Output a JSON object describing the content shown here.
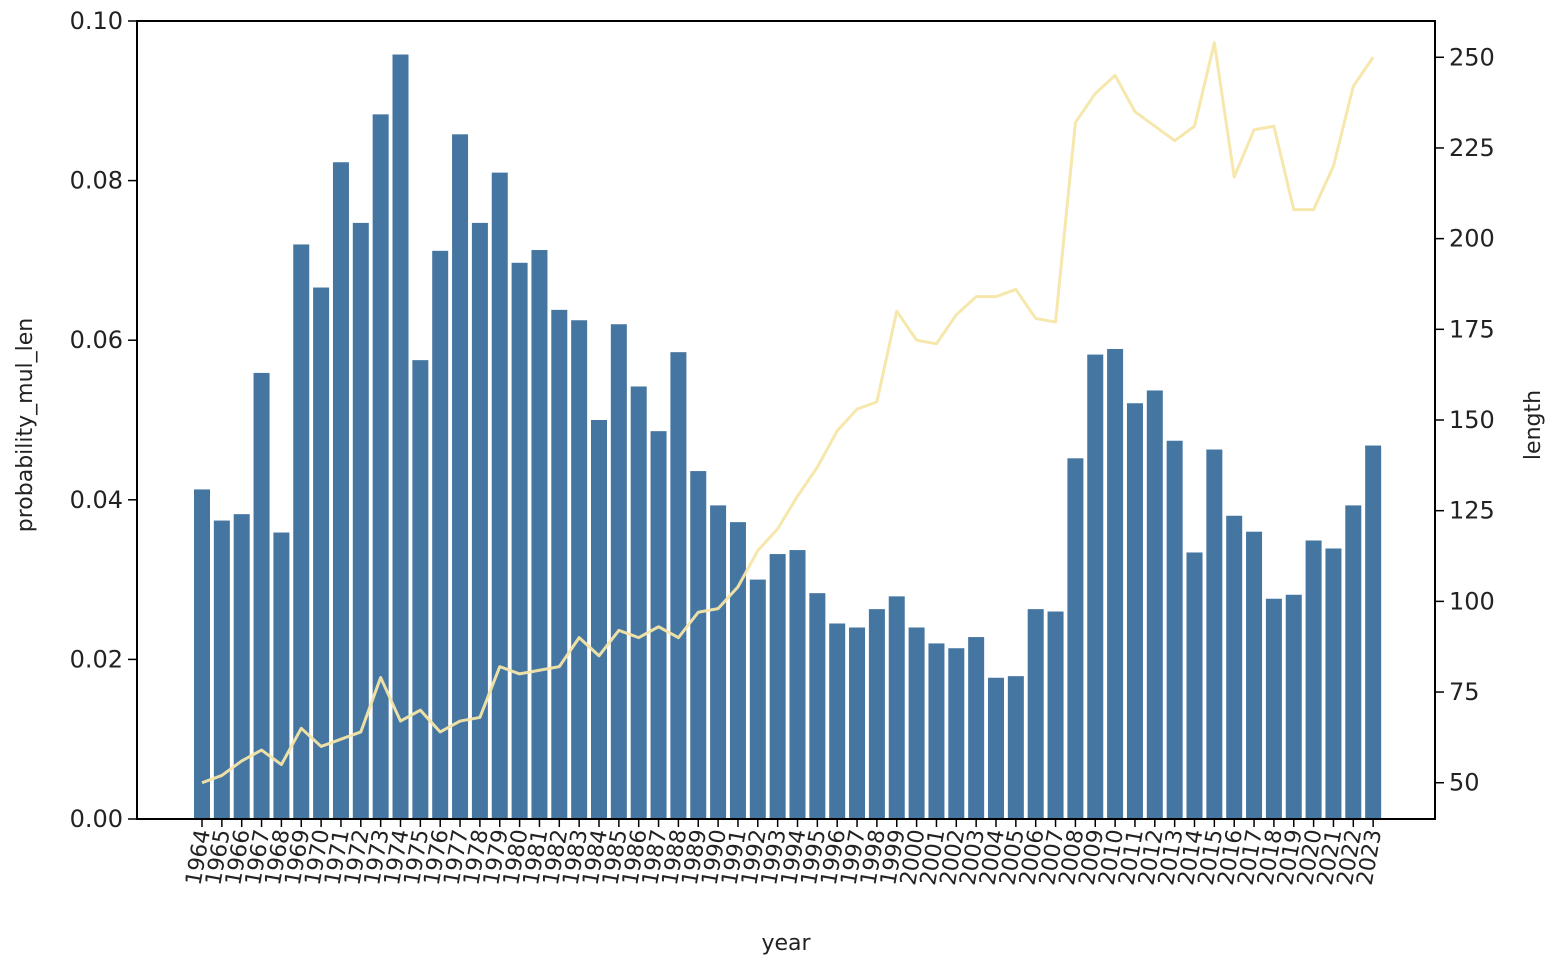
{
  "chart_data": {
    "type": "bar",
    "xlabel": "year",
    "ylabel": "probability_mul_len",
    "y2label": "length",
    "ylim": [
      0,
      0.1
    ],
    "y2lim": [
      40,
      260
    ],
    "yticks": [
      "0.00",
      "0.02",
      "0.04",
      "0.06",
      "0.08",
      "0.10"
    ],
    "y2ticks": [
      "50",
      "75",
      "100",
      "125",
      "150",
      "175",
      "200",
      "225",
      "250"
    ],
    "grid": false,
    "categories": [
      "1964",
      "1965",
      "1966",
      "1967",
      "1968",
      "1969",
      "1970",
      "1971",
      "1972",
      "1973",
      "1974",
      "1975",
      "1976",
      "1977",
      "1978",
      "1979",
      "1980",
      "1981",
      "1982",
      "1983",
      "1984",
      "1985",
      "1986",
      "1987",
      "1988",
      "1989",
      "1990",
      "1991",
      "1992",
      "1993",
      "1994",
      "1995",
      "1996",
      "1997",
      "1998",
      "1999",
      "2000",
      "2001",
      "2002",
      "2003",
      "2004",
      "2005",
      "2006",
      "2007",
      "2008",
      "2009",
      "2010",
      "2011",
      "2012",
      "2013",
      "2014",
      "2015",
      "2016",
      "2017",
      "2018",
      "2019",
      "2020",
      "2021",
      "2022",
      "2023"
    ],
    "series": [
      {
        "type": "bar",
        "axis": "left",
        "color": "#4575a1",
        "values": [
          0.0413,
          0.0374,
          0.0382,
          0.0559,
          0.0359,
          0.072,
          0.0666,
          0.0823,
          0.0747,
          0.0883,
          0.0958,
          0.0575,
          0.0712,
          0.0858,
          0.0747,
          0.081,
          0.0697,
          0.0713,
          0.0638,
          0.0625,
          0.05,
          0.062,
          0.0542,
          0.0486,
          0.0585,
          0.0436,
          0.0393,
          0.0372,
          0.03,
          0.0332,
          0.0337,
          0.0283,
          0.0245,
          0.024,
          0.0263,
          0.0279,
          0.024,
          0.022,
          0.0214,
          0.0228,
          0.0177,
          0.0179,
          0.0263,
          0.026,
          0.0452,
          0.0582,
          0.0589,
          0.0521,
          0.0537,
          0.0474,
          0.0334,
          0.0463,
          0.038,
          0.036,
          0.0276,
          0.0281,
          0.0349,
          0.0339,
          0.0393,
          0.0468
        ]
      },
      {
        "type": "line",
        "axis": "right",
        "color": "#f5e6a8",
        "values": [
          50,
          52,
          56,
          59,
          55,
          65,
          60,
          62,
          64,
          79,
          67,
          70,
          64,
          67,
          68,
          82,
          80,
          81,
          82,
          90,
          85,
          92,
          90,
          93,
          90,
          97,
          98,
          104,
          114,
          120,
          129,
          137,
          147,
          153,
          155,
          180,
          172,
          171,
          179,
          184,
          184,
          186,
          178,
          177,
          232,
          240,
          245,
          235,
          231,
          227,
          231,
          254,
          217,
          230,
          231,
          208,
          208,
          220,
          242,
          250
        ]
      }
    ]
  }
}
